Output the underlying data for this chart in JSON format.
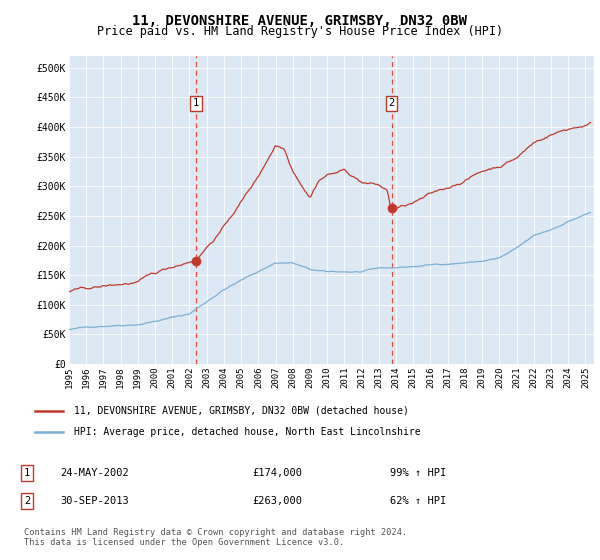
{
  "title": "11, DEVONSHIRE AVENUE, GRIMSBY, DN32 0BW",
  "subtitle": "Price paid vs. HM Land Registry's House Price Index (HPI)",
  "title_fontsize": 10,
  "subtitle_fontsize": 8.5,
  "xlim_start": 1995.0,
  "xlim_end": 2025.5,
  "ylim_min": 0,
  "ylim_max": 520000,
  "yticks": [
    0,
    50000,
    100000,
    150000,
    200000,
    250000,
    300000,
    350000,
    400000,
    450000,
    500000
  ],
  "ytick_labels": [
    "£0",
    "£50K",
    "£100K",
    "£150K",
    "£200K",
    "£250K",
    "£300K",
    "£350K",
    "£400K",
    "£450K",
    "£500K"
  ],
  "xticks": [
    1995,
    1996,
    1997,
    1998,
    1999,
    2000,
    2001,
    2002,
    2003,
    2004,
    2005,
    2006,
    2007,
    2008,
    2009,
    2010,
    2011,
    2012,
    2013,
    2014,
    2015,
    2016,
    2017,
    2018,
    2019,
    2020,
    2021,
    2022,
    2023,
    2024,
    2025
  ],
  "background_color": "#dce9f5",
  "hpi_line_color": "#7bafd4",
  "price_line_color": "#c0392b",
  "marker_color": "#c0392b",
  "vline_color": "#e74c3c",
  "sale1_x": 2002.39,
  "sale1_y": 174000,
  "sale2_x": 2013.75,
  "sale2_y": 263000,
  "legend_line1": "11, DEVONSHIRE AVENUE, GRIMSBY, DN32 0BW (detached house)",
  "legend_line2": "HPI: Average price, detached house, North East Lincolnshire",
  "note1_date": "24-MAY-2002",
  "note1_price": "£174,000",
  "note1_hpi": "99% ↑ HPI",
  "note2_date": "30-SEP-2013",
  "note2_price": "£263,000",
  "note2_hpi": "62% ↑ HPI",
  "footer": "Contains HM Land Registry data © Crown copyright and database right 2024.\nThis data is licensed under the Open Government Licence v3.0."
}
